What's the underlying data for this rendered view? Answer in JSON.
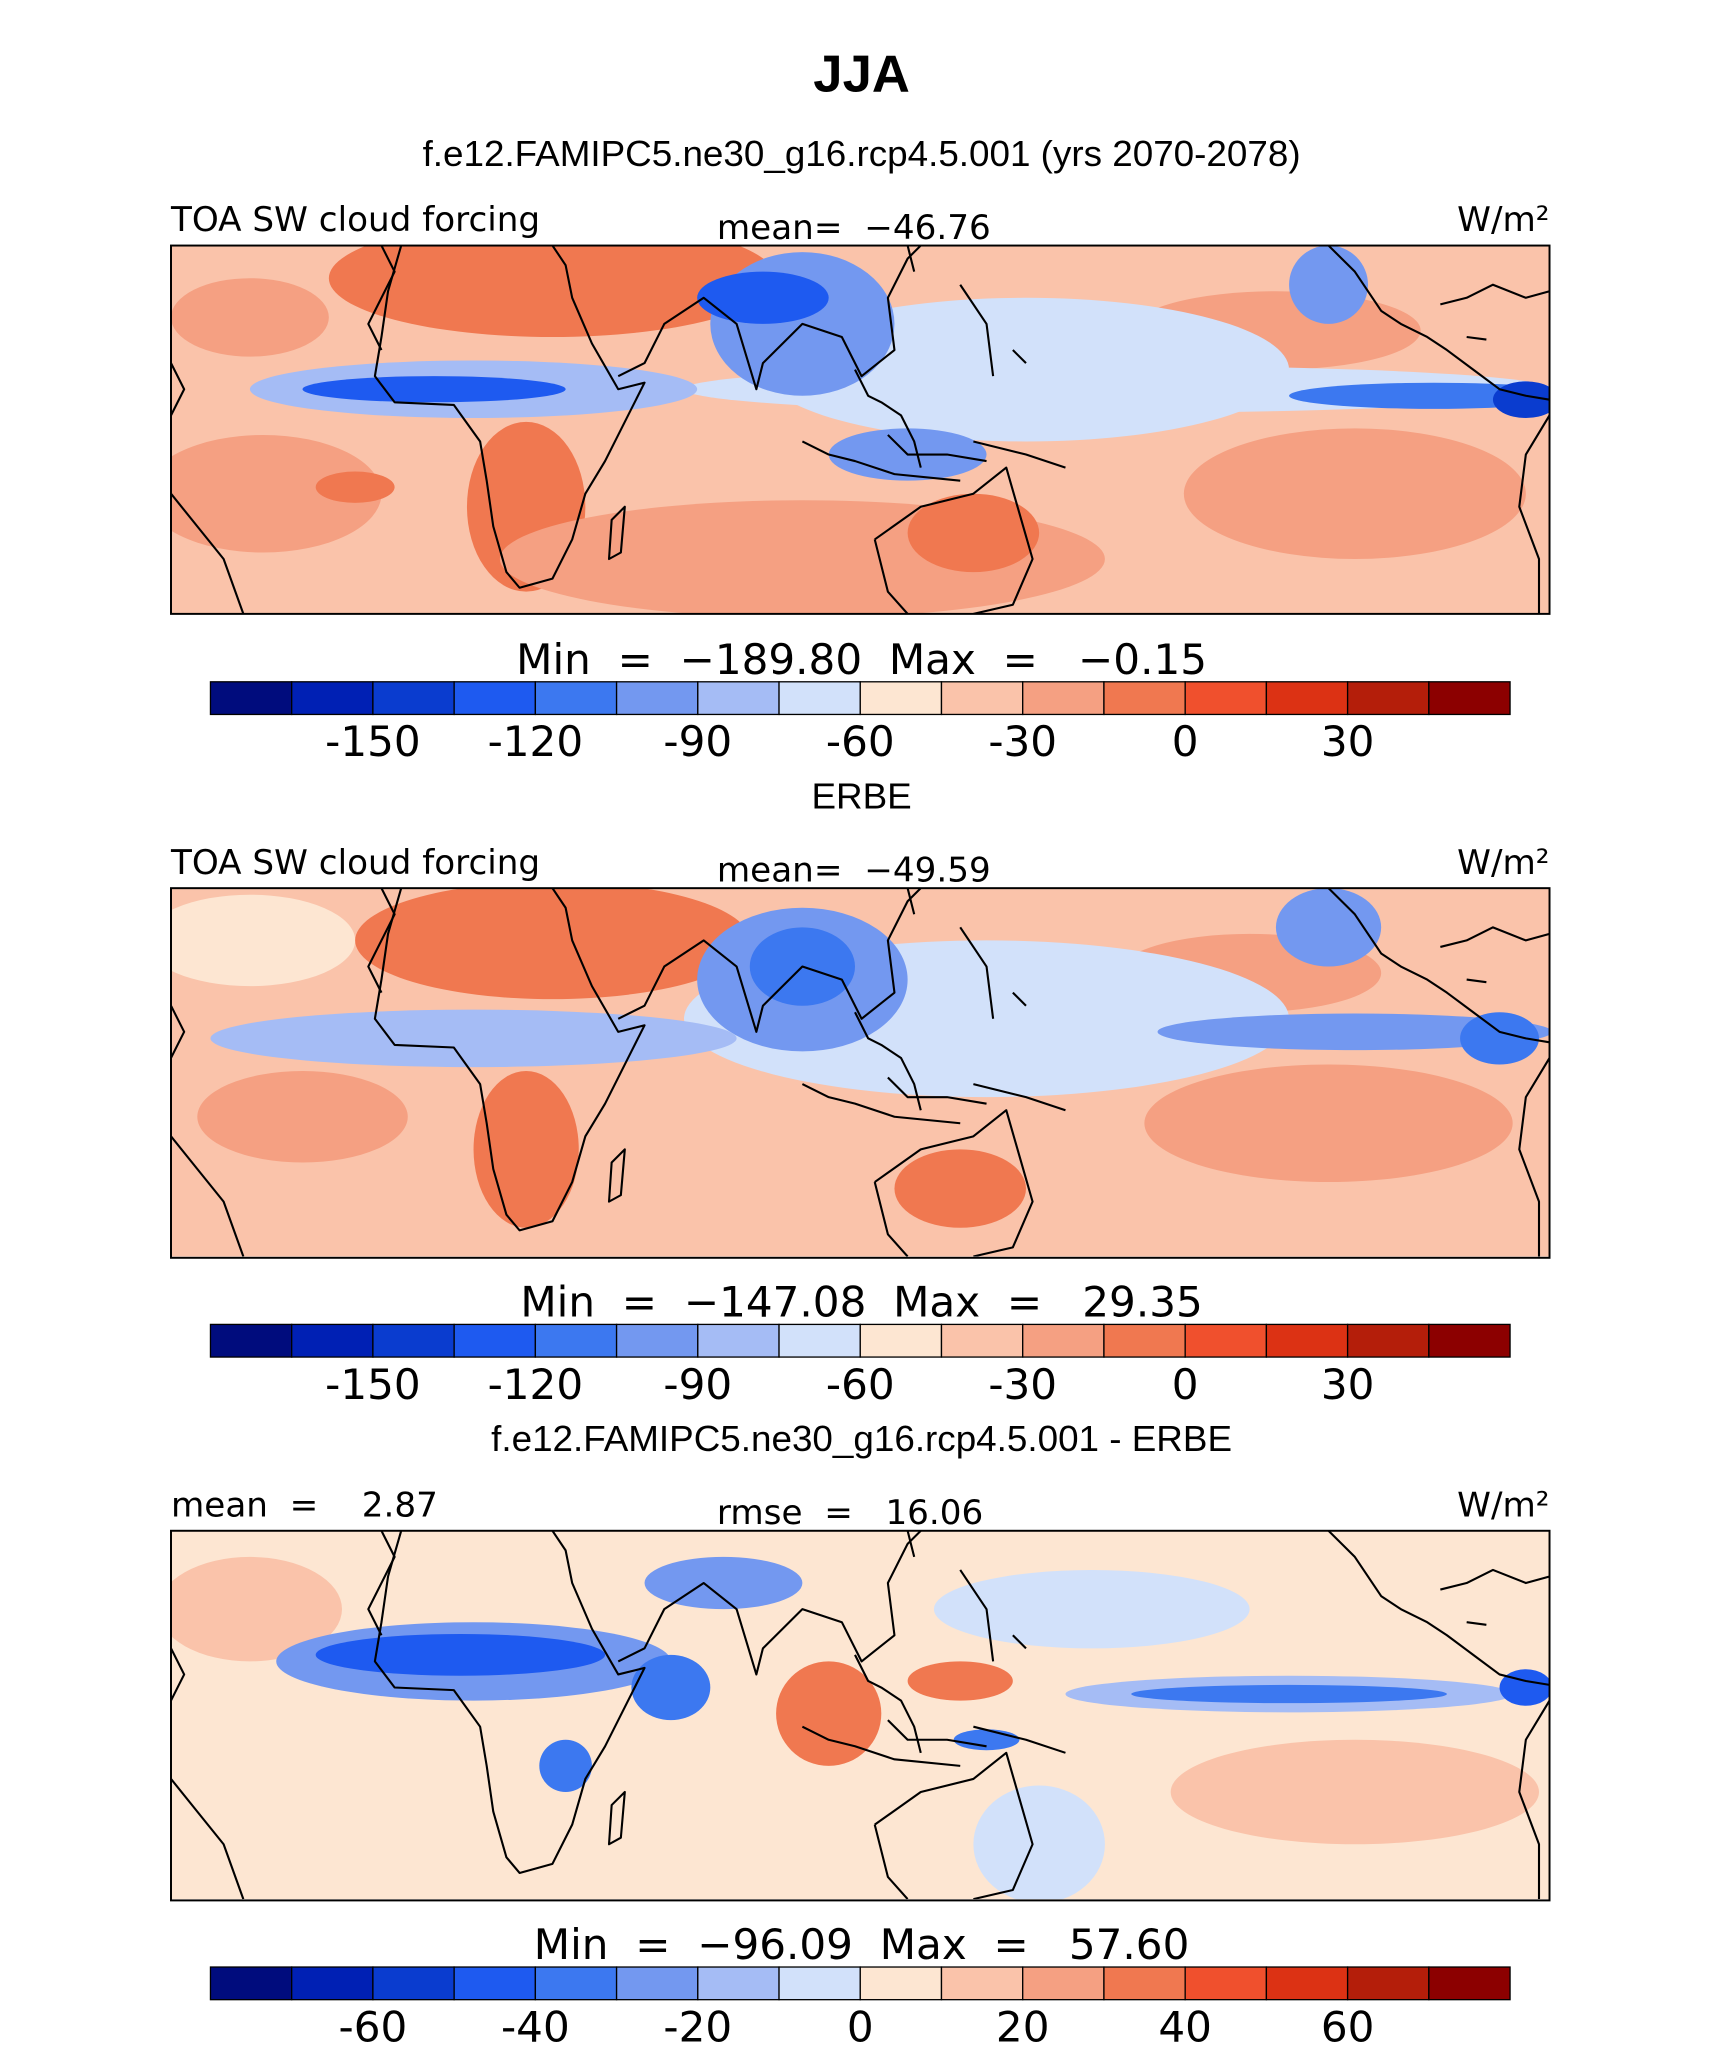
{
  "title": "JJA",
  "colors": [
    "#000c7d",
    "#0020b4",
    "#0a3ccf",
    "#1e5af0",
    "#3c78f0",
    "#7398f0",
    "#a5bcf5",
    "#d2e1fa",
    "#fde6d2",
    "#fac3aa",
    "#f5a082",
    "#f07850",
    "#f0502d",
    "#dc3214",
    "#b41e0a",
    "#8c0000"
  ],
  "panels": [
    {
      "heading": "f.e12.FAMIPC5.ne30_g16.rcp4.5.001 (yrs 2070-2078)",
      "left": "TOA SW cloud forcing",
      "center": "mean=  −46.76",
      "right": "W/m²",
      "stats": "Min  =  −189.80  Max  =   −0.15",
      "colorbar": {
        "range": [
          -180,
          60
        ],
        "ticks": [
          -150,
          -120,
          -90,
          -60,
          -30,
          0,
          30
        ]
      }
    },
    {
      "heading": "ERBE",
      "left": "TOA SW cloud forcing",
      "center": "mean=  −49.59",
      "right": "W/m²",
      "stats": "Min  =  −147.08  Max  =   29.35",
      "colorbar": {
        "range": [
          -180,
          60
        ],
        "ticks": [
          -150,
          -120,
          -90,
          -60,
          -30,
          0,
          30
        ]
      }
    },
    {
      "heading": "f.e12.FAMIPC5.ne30_g16.rcp4.5.001 - ERBE",
      "left": "mean  =    2.87",
      "center": "rmse  =   16.06",
      "right": "W/m²",
      "stats": "Min  =  −96.09  Max  =   57.60",
      "colorbar": {
        "range": [
          -80,
          80
        ],
        "ticks": [
          -60,
          -40,
          -20,
          0,
          20,
          40,
          60
        ]
      }
    }
  ]
}
